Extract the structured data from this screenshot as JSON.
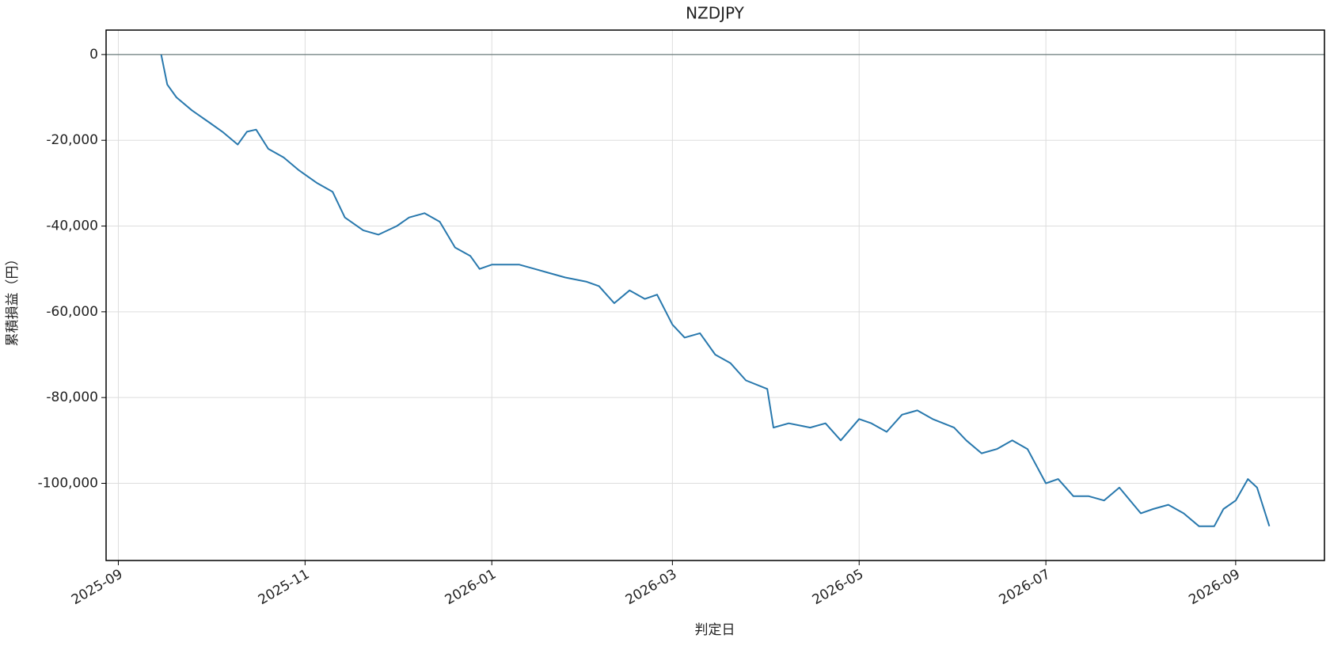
{
  "chart_data": {
    "type": "line",
    "title": "NZDJPY",
    "xlabel": "判定日",
    "ylabel": "累積損益（円）",
    "x": [
      "2025-09-15",
      "2025-09-17",
      "2025-09-20",
      "2025-09-25",
      "2025-10-01",
      "2025-10-05",
      "2025-10-10",
      "2025-10-13",
      "2025-10-16",
      "2025-10-20",
      "2025-10-25",
      "2025-10-30",
      "2025-11-05",
      "2025-11-10",
      "2025-11-14",
      "2025-11-20",
      "2025-11-25",
      "2025-12-01",
      "2025-12-05",
      "2025-12-10",
      "2025-12-15",
      "2025-12-20",
      "2025-12-25",
      "2025-12-28",
      "2026-01-01",
      "2026-01-10",
      "2026-01-15",
      "2026-01-20",
      "2026-01-25",
      "2026-02-01",
      "2026-02-05",
      "2026-02-10",
      "2026-02-15",
      "2026-02-20",
      "2026-02-24",
      "2026-03-01",
      "2026-03-05",
      "2026-03-10",
      "2026-03-15",
      "2026-03-20",
      "2026-03-25",
      "2026-04-01",
      "2026-04-03",
      "2026-04-08",
      "2026-04-15",
      "2026-04-20",
      "2026-04-25",
      "2026-05-01",
      "2026-05-05",
      "2026-05-10",
      "2026-05-15",
      "2026-05-20",
      "2026-05-25",
      "2026-06-01",
      "2026-06-05",
      "2026-06-10",
      "2026-06-15",
      "2026-06-20",
      "2026-06-25",
      "2026-07-01",
      "2026-07-05",
      "2026-07-10",
      "2026-07-15",
      "2026-07-20",
      "2026-07-25",
      "2026-08-01",
      "2026-08-05",
      "2026-08-10",
      "2026-08-15",
      "2026-08-20",
      "2026-08-25",
      "2026-08-28",
      "2026-09-01",
      "2026-09-05",
      "2026-09-08",
      "2026-09-12"
    ],
    "series": [
      {
        "name": "NZDJPY",
        "color": "#2878ad",
        "values": [
          0,
          -7000,
          -10000,
          -13000,
          -16000,
          -18000,
          -21000,
          -18000,
          -17500,
          -22000,
          -24000,
          -27000,
          -30000,
          -32000,
          -38000,
          -41000,
          -42000,
          -40000,
          -38000,
          -37000,
          -39000,
          -45000,
          -47000,
          -50000,
          -49000,
          -49000,
          -50000,
          -51000,
          -52000,
          -53000,
          -54000,
          -58000,
          -55000,
          -57000,
          -56000,
          -63000,
          -66000,
          -65000,
          -70000,
          -72000,
          -76000,
          -78000,
          -87000,
          -86000,
          -87000,
          -86000,
          -90000,
          -85000,
          -86000,
          -88000,
          -84000,
          -83000,
          -85000,
          -87000,
          -90000,
          -93000,
          -92000,
          -90000,
          -92000,
          -100000,
          -99000,
          -103000,
          -103000,
          -104000,
          -101000,
          -107000,
          -106000,
          -105000,
          -107000,
          -110000,
          -110000,
          -106000,
          -104000,
          -99000,
          -101000,
          -110000
        ]
      }
    ],
    "hline": 0,
    "xlim": [
      "2025-08-28",
      "2026-09-30"
    ],
    "xticks": [
      {
        "value": "2025-09-01",
        "label": "2025-09"
      },
      {
        "value": "2025-11-01",
        "label": "2025-11"
      },
      {
        "value": "2026-01-01",
        "label": "2026-01"
      },
      {
        "value": "2026-03-01",
        "label": "2026-03"
      },
      {
        "value": "2026-05-01",
        "label": "2026-05"
      },
      {
        "value": "2026-07-01",
        "label": "2026-07"
      },
      {
        "value": "2026-09-01",
        "label": "2026-09"
      }
    ],
    "ylim": [
      -118000,
      5700
    ],
    "yticks": [
      0,
      {
        "value": -20000,
        "label": "-20,000"
      },
      {
        "value": -40000,
        "label": "-40,000"
      },
      {
        "value": -60000,
        "label": "-60,000"
      },
      {
        "value": -80000,
        "label": "-80,000"
      },
      {
        "value": -100000,
        "label": "-100,000"
      }
    ],
    "grid": true
  }
}
